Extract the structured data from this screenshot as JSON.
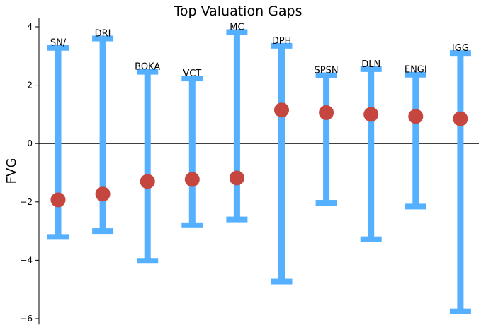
{
  "chart_data": {
    "type": "errorbar",
    "title": "Top Valuation Gaps",
    "xlabel": "",
    "ylabel": "FVG",
    "ylim": [
      -6.2,
      4.3
    ],
    "yticks": [
      -6,
      -4,
      -2,
      0,
      2,
      4
    ],
    "grid": false,
    "zero_line": true,
    "bar_color": "#55b0ff",
    "point_color": "#c4463f",
    "categories": [
      "SN/",
      "DRI",
      "BOKA",
      "VCT",
      "MC",
      "DPH",
      "SPSN",
      "DLN",
      "ENGI",
      "IGG"
    ],
    "points": [
      {
        "label": "SN/",
        "value": -1.93,
        "low": -3.2,
        "high": 3.28
      },
      {
        "label": "DRI",
        "value": -1.73,
        "low": -3.0,
        "high": 3.6
      },
      {
        "label": "BOKA",
        "value": -1.3,
        "low": -4.02,
        "high": 2.46
      },
      {
        "label": "VCT",
        "value": -1.23,
        "low": -2.8,
        "high": 2.23
      },
      {
        "label": "MC",
        "value": -1.18,
        "low": -2.6,
        "high": 3.82
      },
      {
        "label": "DPH",
        "value": 1.15,
        "low": -4.73,
        "high": 3.35
      },
      {
        "label": "SPSN",
        "value": 1.06,
        "low": -2.03,
        "high": 2.34
      },
      {
        "label": "DLN",
        "value": 1.0,
        "low": -3.28,
        "high": 2.55
      },
      {
        "label": "ENGI",
        "value": 0.93,
        "low": -2.16,
        "high": 2.36
      },
      {
        "label": "IGG",
        "value": 0.85,
        "low": -5.75,
        "high": 3.1
      }
    ]
  }
}
